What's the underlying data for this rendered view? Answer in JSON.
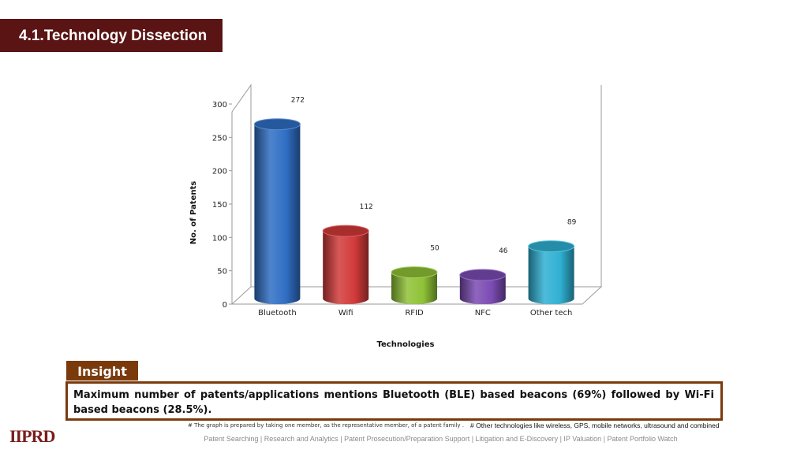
{
  "header": {
    "title": "4.1.Technology Dissection"
  },
  "chart_data": {
    "type": "bar",
    "categories": [
      "Bluetooth",
      "Wifi",
      "RFID",
      "NFC",
      "Other tech"
    ],
    "values": [
      272,
      112,
      50,
      46,
      89
    ],
    "xlabel": "Technologies",
    "ylabel": "No. of Patents",
    "ylim": [
      0,
      300
    ],
    "yticks": [
      0,
      50,
      100,
      150,
      200,
      250,
      300
    ],
    "colors": [
      "#2f6ec4",
      "#d23a3a",
      "#8fc236",
      "#7b4bb3",
      "#2fb0d3"
    ],
    "style": "3d-cylinder",
    "grid": false,
    "legend": "none"
  },
  "insight": {
    "label": "Insight",
    "text": "Maximum number of patents/applications mentions Bluetooth (BLE) based beacons (69%) followed by Wi-Fi based beacons (28.5%)."
  },
  "notes": {
    "left": "# The graph is prepared by taking one member, as the representative member, of a patent family .",
    "right": "# Other technologies like wireless, GPS, mobile networks, ultrasound and combined"
  },
  "logo": {
    "text": "IIPRD"
  },
  "footer": {
    "text": "Patent Searching | Research and Analytics | Patent Prosecution/Preparation Support | Litigation and E-Discovery | IP Valuation | Patent Portfolio Watch"
  }
}
